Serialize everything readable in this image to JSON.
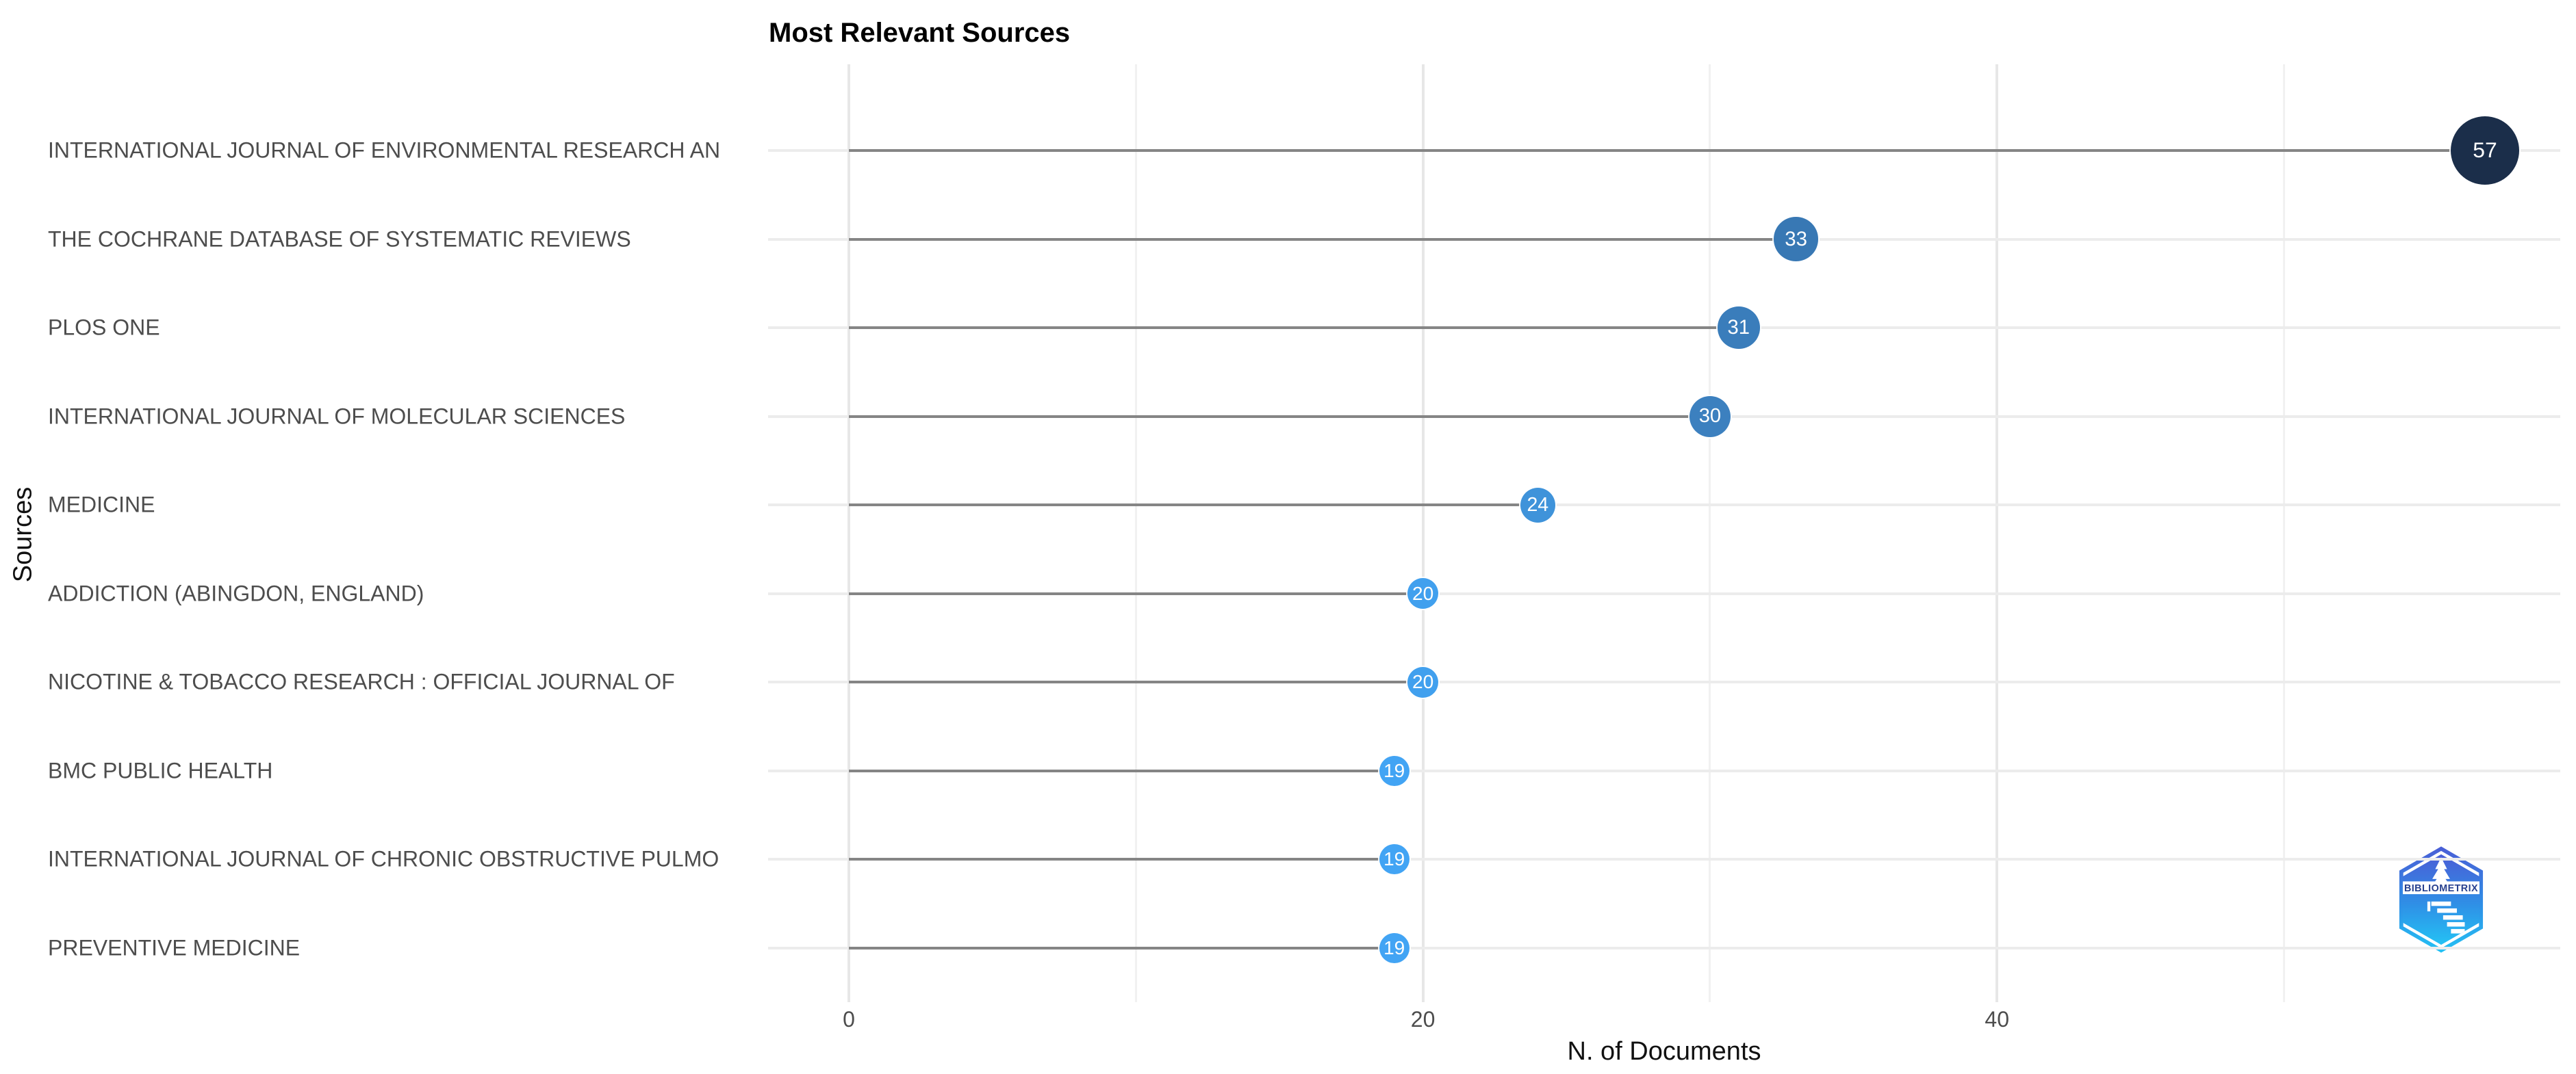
{
  "page": {
    "background": "#ffffff"
  },
  "chart_data": {
    "type": "bar",
    "variant": "horizontal-lollipop",
    "title": "Most Relevant Sources",
    "xlabel": "N. of Documents",
    "ylabel": "Sources",
    "categories": [
      "INTERNATIONAL JOURNAL OF ENVIRONMENTAL RESEARCH AN",
      "THE COCHRANE DATABASE OF SYSTEMATIC REVIEWS",
      "PLOS ONE",
      "INTERNATIONAL JOURNAL OF MOLECULAR SCIENCES",
      "MEDICINE",
      "ADDICTION (ABINGDON, ENGLAND)",
      "NICOTINE & TOBACCO RESEARCH : OFFICIAL JOURNAL OF",
      "BMC PUBLIC HEALTH",
      "INTERNATIONAL JOURNAL OF CHRONIC OBSTRUCTIVE PULMO",
      "PREVENTIVE MEDICINE"
    ],
    "values": [
      57,
      33,
      31,
      30,
      24,
      20,
      20,
      19,
      19,
      19
    ],
    "point_colors": [
      "#1b2e4a",
      "#3878b4",
      "#3a7dbb",
      "#3c80bf",
      "#3f93da",
      "#41a0ee",
      "#41a0ee",
      "#42a4f4",
      "#42a4f4",
      "#42a4f4"
    ],
    "xlim": [
      -2.8,
      59.8
    ],
    "x_ticks": [
      0,
      20,
      40
    ],
    "x_tick_labels": [
      "0",
      "20",
      "40"
    ],
    "x_minor_ticks": [
      10,
      30,
      50
    ],
    "grid": "on",
    "legend": "none"
  },
  "style_colors": {
    "grid_major": "#e7e7e7",
    "grid_minor": "#f1f1f1",
    "row_line": "#ececec",
    "stem": "#858585",
    "axis_text": "#4d4d4d",
    "point_label_text": "#ffffff"
  },
  "logo": {
    "label": "BIBLIOMETRIX"
  }
}
